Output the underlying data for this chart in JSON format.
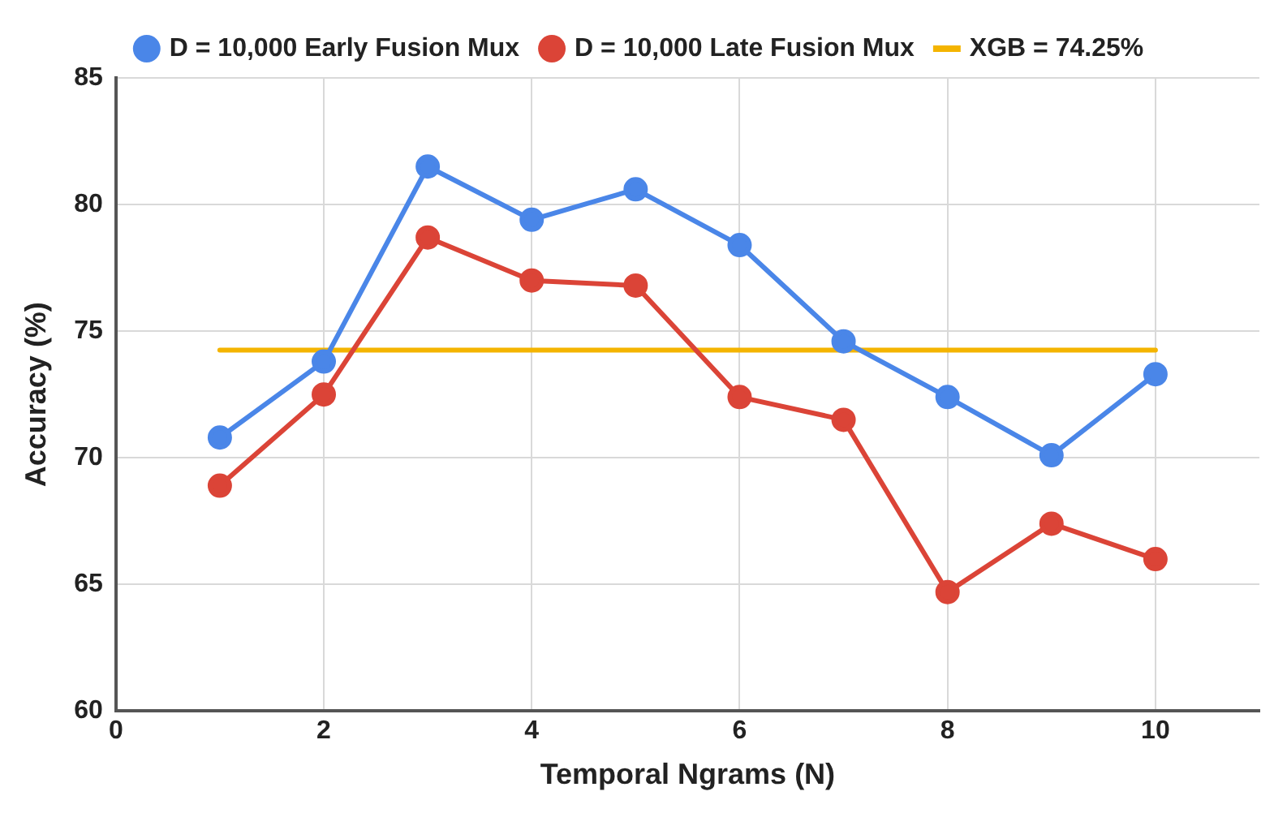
{
  "chart_data": {
    "type": "line",
    "xlabel": "Temporal Ngrams (N)",
    "ylabel": "Accuracy (%)",
    "x": [
      1,
      2,
      3,
      4,
      5,
      6,
      7,
      8,
      9,
      10
    ],
    "series": [
      {
        "name": "D = 10,000 Early Fusion Mux",
        "color": "#4a86e8",
        "values": [
          70.8,
          73.8,
          81.5,
          79.4,
          80.6,
          78.4,
          74.6,
          72.4,
          70.1,
          73.3
        ]
      },
      {
        "name": "D = 10,000 Late Fusion Mux",
        "color": "#db4437",
        "values": [
          68.9,
          72.5,
          78.7,
          77.0,
          76.8,
          72.4,
          71.5,
          64.7,
          67.4,
          66.0
        ]
      },
      {
        "name": "XGB = 74.25%",
        "color": "#f4b400",
        "x": [
          1,
          10
        ],
        "values": [
          74.25,
          74.25
        ],
        "marker": "none"
      }
    ],
    "xlim": [
      0,
      11
    ],
    "xticks": [
      0,
      2,
      4,
      6,
      8,
      10
    ],
    "ylim": [
      60,
      85
    ],
    "yticks": [
      60,
      65,
      70,
      75,
      80,
      85
    ],
    "grid": true,
    "legend": "top",
    "marker": "circle",
    "line_style": "solid"
  }
}
